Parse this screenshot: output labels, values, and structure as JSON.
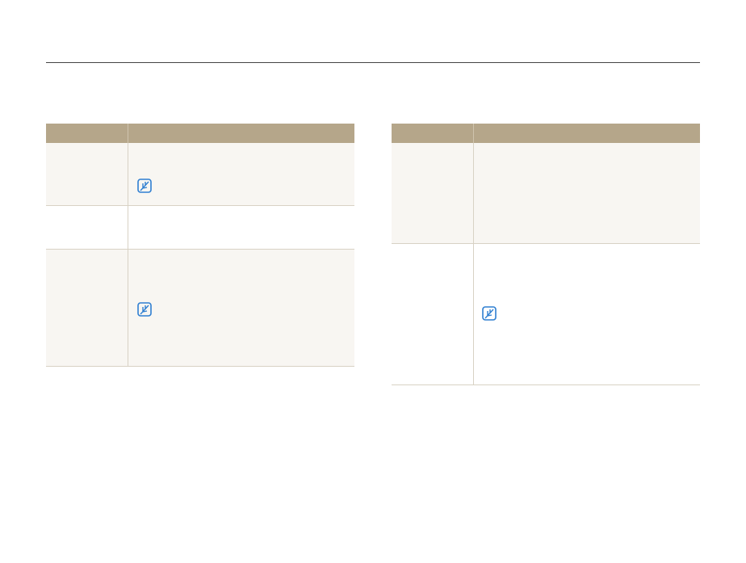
{
  "colors": {
    "header_bg": "#b5a68a",
    "shaded_row_bg": "#f8f6f2",
    "row_border": "#d8d2c4",
    "note_icon": "#2f7fd1"
  },
  "left_table": {
    "rows": [
      {
        "shaded": true,
        "has_note": true
      },
      {
        "shaded": false,
        "has_note": false
      },
      {
        "shaded": true,
        "has_note": true
      }
    ]
  },
  "right_table": {
    "rows": [
      {
        "shaded": true,
        "has_note": false
      },
      {
        "shaded": false,
        "has_note": true
      }
    ]
  },
  "icons": {
    "note": "note-pencil-icon"
  }
}
